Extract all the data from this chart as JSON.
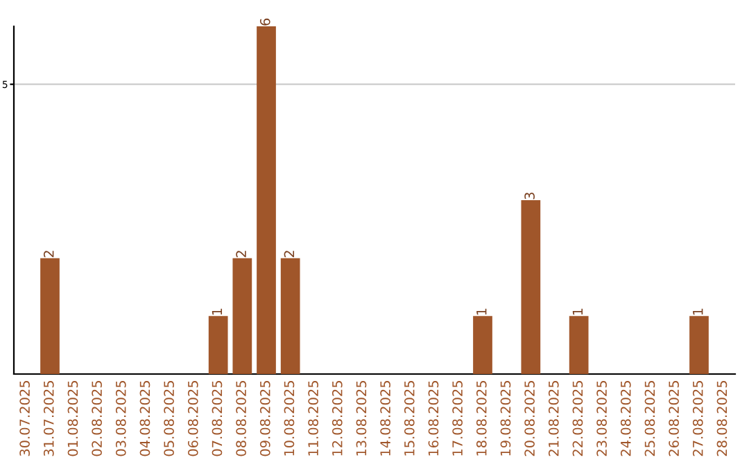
{
  "chart_data": {
    "type": "bar",
    "categories": [
      "30.07.2025",
      "31.07.2025",
      "01.08.2025",
      "02.08.2025",
      "03.08.2025",
      "04.08.2025",
      "05.08.2025",
      "06.08.2025",
      "07.08.2025",
      "08.08.2025",
      "09.08.2025",
      "10.08.2025",
      "11.08.2025",
      "12.08.2025",
      "13.08.2025",
      "14.08.2025",
      "15.08.2025",
      "16.08.2025",
      "17.08.2025",
      "18.08.2025",
      "19.08.2025",
      "20.08.2025",
      "21.08.2025",
      "22.08.2025",
      "23.08.2025",
      "24.08.2025",
      "25.08.2025",
      "26.08.2025",
      "27.08.2025",
      "28.08.2025"
    ],
    "values": [
      0,
      2,
      0,
      0,
      0,
      0,
      0,
      0,
      1,
      2,
      6,
      2,
      0,
      0,
      0,
      0,
      0,
      0,
      0,
      1,
      0,
      3,
      0,
      1,
      0,
      0,
      0,
      0,
      1,
      0
    ],
    "value_labels": [
      null,
      "2",
      null,
      null,
      null,
      null,
      null,
      null,
      "1",
      "2",
      "6",
      "2",
      null,
      null,
      null,
      null,
      null,
      null,
      null,
      "1",
      null,
      "3",
      null,
      "1",
      null,
      null,
      null,
      null,
      "1",
      null
    ],
    "color": "#a0562a",
    "ylim": [
      0,
      6
    ],
    "yticks": [
      5
    ],
    "grid": "y"
  }
}
